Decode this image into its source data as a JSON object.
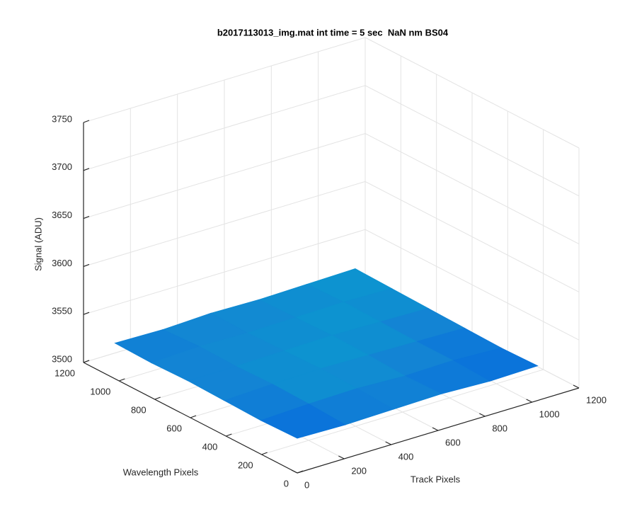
{
  "chart_data": {
    "type": "surface",
    "title": "b2017113013_img.mat int time = 5 sec  NaN nm BS04",
    "xlabel": "Track Pixels",
    "ylabel": "Wavelength Pixels",
    "zlabel": "Signal (ADU)",
    "x": [
      1,
      205,
      410,
      614,
      819,
      1024
    ],
    "y": [
      1,
      205,
      410,
      614,
      819,
      1024
    ],
    "z": [
      [
        3536,
        3535,
        3536,
        3537,
        3535,
        3536
      ],
      [
        3535,
        3537,
        3538,
        3536,
        3537,
        3535
      ],
      [
        3536,
        3538,
        3539,
        3538,
        3537,
        3536
      ],
      [
        3537,
        3537,
        3538,
        3539,
        3538,
        3537
      ],
      [
        3536,
        3538,
        3537,
        3538,
        3539,
        3538
      ],
      [
        3537,
        3536,
        3538,
        3537,
        3538,
        3539
      ]
    ],
    "xlim": [
      0,
      1200
    ],
    "ylim": [
      0,
      1200
    ],
    "zlim": [
      3500,
      3750
    ],
    "xticks": [
      0,
      200,
      400,
      600,
      800,
      1000,
      1200
    ],
    "yticks": [
      0,
      200,
      400,
      600,
      800,
      1000,
      1200
    ],
    "zticks": [
      3500,
      3550,
      3600,
      3650,
      3700,
      3750
    ],
    "grid": true,
    "colormap": "parula"
  }
}
